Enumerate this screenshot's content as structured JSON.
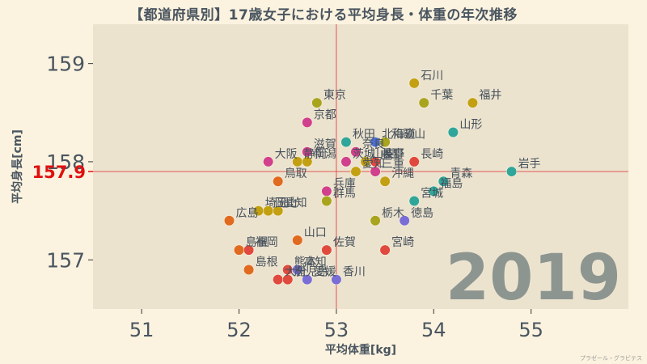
{
  "chart_data": {
    "type": "scatter",
    "title": "【都道府県別】17歳女子における平均身長・体重の年次推移",
    "xlabel": "平均体重[kg]",
    "ylabel": "平均身長[cm]",
    "xlim": [
      50.5,
      56
    ],
    "ylim": [
      156.5,
      159.4
    ],
    "xticks": [
      "51",
      "52",
      "53",
      "54",
      "55"
    ],
    "yticks": [
      "157",
      "158",
      "159"
    ],
    "reference": {
      "y": 157.9,
      "y_label": "157.9",
      "x": 53.0
    },
    "year": "2019",
    "points": [
      {
        "name": "石川",
        "x": 53.8,
        "y": 158.8,
        "color": "#c2a012"
      },
      {
        "name": "福井",
        "x": 54.4,
        "y": 158.6,
        "color": "#c2a012"
      },
      {
        "name": "千葉",
        "x": 53.9,
        "y": 158.6,
        "color": "#a8a41e"
      },
      {
        "name": "東京",
        "x": 52.8,
        "y": 158.6,
        "color": "#a8a41e"
      },
      {
        "name": "京都",
        "x": 52.7,
        "y": 158.4,
        "color": "#d0408c"
      },
      {
        "name": "山形",
        "x": 54.2,
        "y": 158.3,
        "color": "#30a69a"
      },
      {
        "name": "秋田",
        "x": 53.1,
        "y": 158.2,
        "color": "#30a69a"
      },
      {
        "name": "北海道",
        "x": 53.4,
        "y": 158.2,
        "color": "#4d6fd6"
      },
      {
        "name": "和歌山",
        "x": 53.5,
        "y": 158.2,
        "color": "#a8a41e"
      },
      {
        "name": "滋賀",
        "x": 52.7,
        "y": 158.1,
        "color": "#d0408c"
      },
      {
        "name": "奈良",
        "x": 53.2,
        "y": 158.1,
        "color": "#d0408c"
      },
      {
        "name": "岐阜",
        "x": 53.4,
        "y": 158.0,
        "color": "#c2a012"
      },
      {
        "name": "長崎",
        "x": 53.8,
        "y": 158.0,
        "color": "#e04a3e"
      },
      {
        "name": "大阪",
        "x": 52.3,
        "y": 158.0,
        "color": "#d0408c"
      },
      {
        "name": "静岡",
        "x": 52.6,
        "y": 158.0,
        "color": "#c2a012"
      },
      {
        "name": "新潟",
        "x": 52.7,
        "y": 158.0,
        "color": "#c2a012"
      },
      {
        "name": "茨城",
        "x": 53.1,
        "y": 158.0,
        "color": "#d0408c"
      },
      {
        "name": "山梨",
        "x": 53.3,
        "y": 158.0,
        "color": "#c2a012"
      },
      {
        "name": "長野",
        "x": 53.4,
        "y": 158.0,
        "color": "#e04a3e"
      },
      {
        "name": "岩手",
        "x": 54.8,
        "y": 157.9,
        "color": "#30a69a"
      },
      {
        "name": "愛知",
        "x": 53.2,
        "y": 157.9,
        "color": "#c2a012"
      },
      {
        "name": "三重",
        "x": 53.4,
        "y": 157.9,
        "color": "#d0408c"
      },
      {
        "name": "青森",
        "x": 54.1,
        "y": 157.8,
        "color": "#30a69a"
      },
      {
        "name": "沖縄",
        "x": 53.5,
        "y": 157.8,
        "color": "#c2a012"
      },
      {
        "name": "鳥取",
        "x": 52.4,
        "y": 157.8,
        "color": "#e06a20"
      },
      {
        "name": "福島",
        "x": 54.0,
        "y": 157.7,
        "color": "#30a69a"
      },
      {
        "name": "兵庫",
        "x": 52.9,
        "y": 157.7,
        "color": "#d0408c"
      },
      {
        "name": "宮城",
        "x": 53.8,
        "y": 157.6,
        "color": "#30a69a"
      },
      {
        "name": "群馬",
        "x": 52.9,
        "y": 157.6,
        "color": "#a8a41e"
      },
      {
        "name": "岡山",
        "x": 52.3,
        "y": 157.5,
        "color": "#c2a012"
      },
      {
        "name": "埼玉",
        "x": 52.2,
        "y": 157.5,
        "color": "#c2a012"
      },
      {
        "name": "愛知",
        "x": 52.4,
        "y": 157.5,
        "color": "#c2a012"
      },
      {
        "name": "栃木",
        "x": 53.4,
        "y": 157.4,
        "color": "#a8a41e"
      },
      {
        "name": "徳島",
        "x": 53.7,
        "y": 157.4,
        "color": "#7a6ed6"
      },
      {
        "name": "広島",
        "x": 51.9,
        "y": 157.4,
        "color": "#e06a20"
      },
      {
        "name": "山口",
        "x": 52.6,
        "y": 157.2,
        "color": "#e06a20"
      },
      {
        "name": "佐賀",
        "x": 52.9,
        "y": 157.1,
        "color": "#e04a3e"
      },
      {
        "name": "宮崎",
        "x": 53.5,
        "y": 157.1,
        "color": "#e04a3e"
      },
      {
        "name": "島根",
        "x": 52.0,
        "y": 157.1,
        "color": "#e06a20"
      },
      {
        "name": "福岡",
        "x": 52.1,
        "y": 157.1,
        "color": "#e04a3e"
      },
      {
        "name": "島根",
        "x": 52.1,
        "y": 156.9,
        "color": "#e06a20"
      },
      {
        "name": "熊本",
        "x": 52.5,
        "y": 156.9,
        "color": "#e04a3e"
      },
      {
        "name": "高知",
        "x": 52.6,
        "y": 156.9,
        "color": "#7a6ed6"
      },
      {
        "name": "大分",
        "x": 52.4,
        "y": 156.8,
        "color": "#e04a3e"
      },
      {
        "name": "鹿児島",
        "x": 52.5,
        "y": 156.8,
        "color": "#e04a3e"
      },
      {
        "name": "愛媛",
        "x": 52.7,
        "y": 156.8,
        "color": "#7a6ed6"
      },
      {
        "name": "香川",
        "x": 53.0,
        "y": 156.8,
        "color": "#7a6ed6"
      }
    ]
  },
  "credit": "プラゼール・グラビテス"
}
